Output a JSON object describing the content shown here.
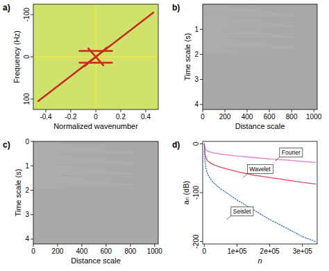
{
  "chart_data": [
    {
      "type": "spectrum",
      "title": "a)",
      "x_label": "Normalized wavenumber",
      "y_label": "Frequency (Hz)",
      "xlim": [
        -0.5,
        0.5
      ],
      "ylim": [
        125,
        -125
      ],
      "xticks": [
        -0.4,
        -0.2,
        0,
        0.2,
        0.4
      ],
      "yticks": [
        -100,
        0,
        100
      ],
      "series": [
        {
          "color": "#f3e54a",
          "x": [
            0,
            0
          ],
          "values": [
            125,
            -125
          ]
        },
        {
          "color": "#f3e54a",
          "x": [
            -0.5,
            0.5
          ],
          "values": [
            0,
            0
          ]
        },
        {
          "color": "#c8281e",
          "x": [
            -0.46,
            0.46
          ],
          "values": [
            105,
            -105
          ]
        },
        {
          "color": "#c8281e",
          "x": [
            -0.13,
            0.13
          ],
          "values": [
            -14,
            -14
          ]
        },
        {
          "color": "#c8281e",
          "x": [
            -0.13,
            0.13
          ],
          "values": [
            14,
            14
          ]
        },
        {
          "color": "#c8281e",
          "x": [
            -0.09,
            0.09
          ],
          "values": [
            22,
            -22
          ]
        },
        {
          "color": "#c8281e",
          "x": [
            -0.06,
            0.06
          ],
          "values": [
            -20,
            20
          ]
        }
      ]
    },
    {
      "type": "image",
      "title": "b)",
      "x_label": "Distance scale",
      "y_label": "Time scale (s)",
      "xlim": [
        0,
        1030
      ],
      "ylim": [
        4.2,
        0
      ],
      "xticks": [
        0,
        200,
        400,
        600,
        800,
        1000
      ],
      "yticks": [
        1,
        2,
        3,
        4
      ]
    },
    {
      "type": "image",
      "title": "c)",
      "x_label": "Distance scale",
      "y_label": "Time scale (s)",
      "xlim": [
        0,
        1030
      ],
      "ylim": [
        4.2,
        0
      ],
      "xticks": [
        0,
        200,
        400,
        600,
        800,
        1000
      ],
      "yticks": [
        0,
        1,
        2,
        3,
        4
      ]
    },
    {
      "type": "line",
      "title": "d)",
      "x_label": "n",
      "y_label": "aₙ (dB)",
      "xlim": [
        -5000,
        345000
      ],
      "ylim": [
        -205,
        5
      ],
      "xticks": [
        0,
        {
          "value": 100000,
          "label": "1e+05"
        },
        {
          "value": 200000,
          "label": "2e+05"
        },
        {
          "value": 300000,
          "label": "3e+05"
        }
      ],
      "yticks": [
        0,
        -100,
        -200
      ],
      "x": [
        0,
        2000,
        5000,
        10000,
        25000,
        50000,
        100000,
        150000,
        200000,
        250000,
        300000,
        340000
      ],
      "series": [
        {
          "name": "Fourier",
          "color": "#e07cc8",
          "line_style": "solid",
          "values": [
            0,
            -8,
            -12,
            -15,
            -18,
            -21,
            -25,
            -28,
            -31,
            -33,
            -36,
            -38
          ]
        },
        {
          "name": "Wavelet",
          "color": "#e0465e",
          "line_style": "solid",
          "values": [
            0,
            -20,
            -28,
            -35,
            -42,
            -48,
            -57,
            -64,
            -69,
            -74,
            -79,
            -82
          ]
        },
        {
          "name": "Seislet",
          "color": "#3a6fd8",
          "line_style": "dotted",
          "values": [
            0,
            -35,
            -50,
            -62,
            -78,
            -92,
            -115,
            -135,
            -155,
            -172,
            -190,
            -200
          ]
        }
      ],
      "annotations": [
        {
          "text": "Fourier",
          "x": 265000,
          "y": -18
        },
        {
          "text": "Wavelet",
          "x": 170000,
          "y": -52
        },
        {
          "text": "Seislet",
          "x": 115000,
          "y": -138
        }
      ]
    }
  ]
}
